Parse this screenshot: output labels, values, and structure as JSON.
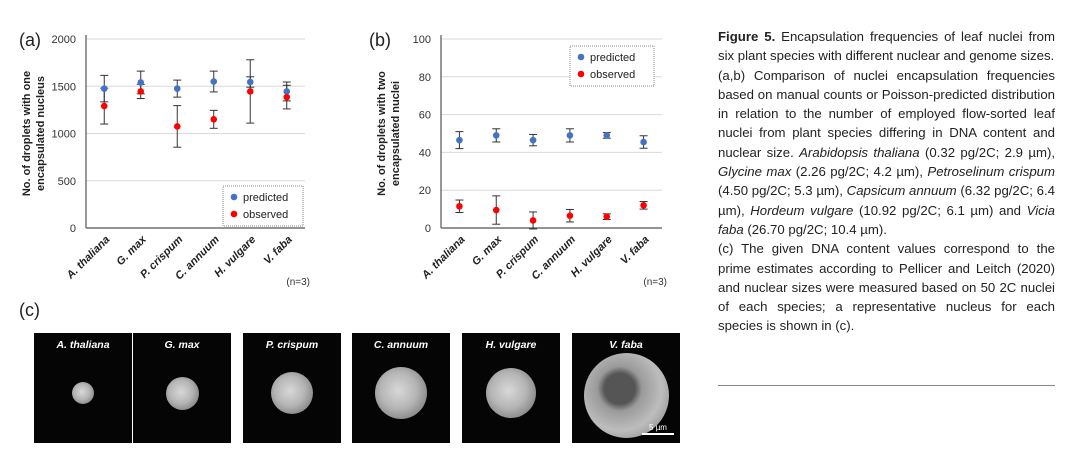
{
  "panels": {
    "a": "(a)",
    "b": "(b)",
    "c": "(c)"
  },
  "chart_data": [
    {
      "type": "scatter",
      "panel": "a",
      "categories": [
        "A. thaliana",
        "G. max",
        "P. crispum",
        "C. annuum",
        "H. vulgare",
        "V. faba"
      ],
      "ylabel_lines": [
        "No. of droplets with one",
        "encapsulated nucleus"
      ],
      "ylim": [
        0,
        2000
      ],
      "yticks": [
        0,
        500,
        1000,
        1500,
        2000
      ],
      "grid": true,
      "legend_placement": "bottom-right",
      "note": "(n=3)",
      "series": [
        {
          "name": "predicted",
          "color": "#4472c4",
          "values": [
            1475,
            1540,
            1475,
            1550,
            1545,
            1445
          ],
          "errors": [
            140,
            120,
            90,
            110,
            55,
            100
          ]
        },
        {
          "name": "observed",
          "color": "#ff0000",
          "values": [
            1290,
            1445,
            1075,
            1150,
            1445,
            1385
          ],
          "errors": [
            190,
            75,
            220,
            95,
            335,
            125
          ]
        }
      ]
    },
    {
      "type": "scatter",
      "panel": "b",
      "categories": [
        "A. thaliana",
        "G. max",
        "P. crispum",
        "C. annuum",
        "H. vulgare",
        "V. faba"
      ],
      "ylabel_lines": [
        "No. of droplets with two",
        "encapsulated nuclei"
      ],
      "ylim": [
        0,
        100
      ],
      "yticks": [
        0,
        20,
        40,
        60,
        80,
        100
      ],
      "grid": true,
      "legend_placement": "top-right",
      "note": "(n=3)",
      "series": [
        {
          "name": "predicted",
          "color": "#4472c4",
          "values": [
            46.5,
            49,
            46.5,
            49,
            49,
            45.5
          ],
          "errors": [
            4.5,
            3.5,
            3,
            3.5,
            1.5,
            3.3
          ]
        },
        {
          "name": "observed",
          "color": "#ff0000",
          "values": [
            11.5,
            9.5,
            4,
            6.5,
            6,
            12
          ],
          "errors": [
            3.3,
            7.5,
            4.5,
            3.3,
            1.5,
            2
          ]
        }
      ]
    }
  ],
  "micrographs": [
    {
      "label": "A. thaliana",
      "size": 0.22
    },
    {
      "label": "G. max",
      "size": 0.33
    },
    {
      "label": "P. crispum",
      "size": 0.42
    },
    {
      "label": "C. annuum",
      "size": 0.52
    },
    {
      "label": "H. vulgare",
      "size": 0.5
    },
    {
      "label": "V. faba",
      "size": 0.85,
      "scale_bar": "5 µm"
    }
  ],
  "caption": {
    "figure_label": "Figure 5.",
    "title": " Encapsulation frequencies of leaf nuclei from six plant species with different nuclear and genome sizes.",
    "ab_text_1": "(a,b) Comparison of nuclei encapsulation frequencies based on manual counts or Poisson-predicted distribution in relation to the number of employed flow-sorted leaf nuclei from plant species differing in DNA content and nuclear size. ",
    "sp1": "Arabidopsis thaliana",
    "sp1_vals": " (0.32 pg/2C; 2.9 µm), ",
    "sp2": "Glycine max",
    "sp2_vals": " (2.26 pg/2C; 4.2 µm), ",
    "sp3": "Petroselinum crispum",
    "sp3_vals": " (4.50 pg/2C; 5.3 µm), ",
    "sp4": "Capsicum annuum",
    "sp4_vals": " (6.32 pg/2C; 6.4 µm), ",
    "sp5": "Hordeum vulgare",
    "sp5_vals": " (10.92 pg/2C; 6.1 µm) and ",
    "sp6": "Vicia faba",
    "sp6_vals": " (26.70 pg/2C; 10.4 µm).",
    "c_text": "(c) The given DNA content values correspond to the prime estimates according to Pellicer and Leitch (2020) and nuclear sizes were measured based on 50 2C nuclei of each species; a representative nucleus for each species is shown in (c)."
  }
}
